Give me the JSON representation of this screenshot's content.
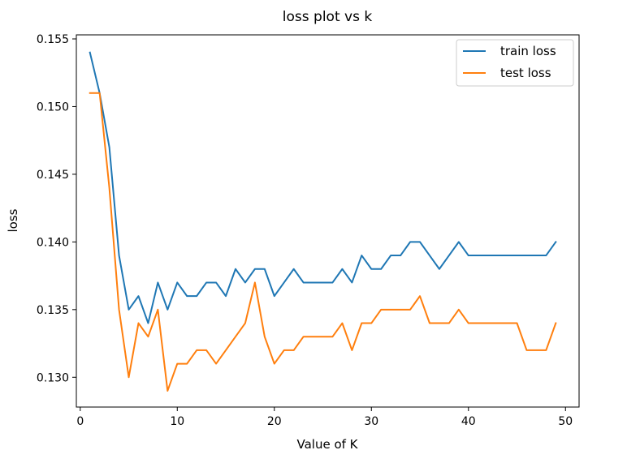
{
  "chart_data": {
    "type": "line",
    "title": "loss plot vs k",
    "xlabel": "Value of K",
    "ylabel": "loss",
    "xlim": [
      -0.4,
      51.4
    ],
    "ylim": [
      0.1278,
      0.1553
    ],
    "x_ticks": [
      0,
      10,
      20,
      30,
      40,
      50
    ],
    "y_ticks": [
      0.13,
      0.135,
      0.14,
      0.145,
      0.15,
      0.155
    ],
    "x_tick_labels": [
      "0",
      "10",
      "20",
      "30",
      "40",
      "50"
    ],
    "y_tick_labels": [
      "0.130",
      "0.135",
      "0.140",
      "0.145",
      "0.150",
      "0.155"
    ],
    "grid": false,
    "legend_position": "top-right",
    "x": [
      1,
      2,
      3,
      4,
      5,
      6,
      7,
      8,
      9,
      10,
      11,
      12,
      13,
      14,
      15,
      16,
      17,
      18,
      19,
      20,
      21,
      22,
      23,
      24,
      25,
      26,
      27,
      28,
      29,
      30,
      31,
      32,
      33,
      34,
      35,
      36,
      37,
      38,
      39,
      40,
      41,
      42,
      43,
      44,
      45,
      46,
      47,
      48,
      49
    ],
    "series": [
      {
        "name": "train loss",
        "color": "#1f77b4",
        "values": [
          0.154,
          0.151,
          0.147,
          0.139,
          0.135,
          0.136,
          0.134,
          0.137,
          0.135,
          0.137,
          0.136,
          0.136,
          0.137,
          0.137,
          0.136,
          0.138,
          0.137,
          0.138,
          0.138,
          0.136,
          0.137,
          0.138,
          0.137,
          0.137,
          0.137,
          0.137,
          0.138,
          0.137,
          0.139,
          0.138,
          0.138,
          0.139,
          0.139,
          0.14,
          0.14,
          0.139,
          0.138,
          0.139,
          0.14,
          0.139,
          0.139,
          0.139,
          0.139,
          0.139,
          0.139,
          0.139,
          0.139,
          0.139,
          0.14
        ]
      },
      {
        "name": "test loss",
        "color": "#ff7f0e",
        "values": [
          0.151,
          0.151,
          0.144,
          0.135,
          0.13,
          0.134,
          0.133,
          0.135,
          0.129,
          0.131,
          0.131,
          0.132,
          0.132,
          0.131,
          0.132,
          0.133,
          0.134,
          0.137,
          0.133,
          0.131,
          0.132,
          0.132,
          0.133,
          0.133,
          0.133,
          0.133,
          0.134,
          0.132,
          0.134,
          0.134,
          0.135,
          0.135,
          0.135,
          0.135,
          0.136,
          0.134,
          0.134,
          0.134,
          0.135,
          0.134,
          0.134,
          0.134,
          0.134,
          0.134,
          0.134,
          0.132,
          0.132,
          0.132,
          0.134
        ]
      }
    ]
  }
}
